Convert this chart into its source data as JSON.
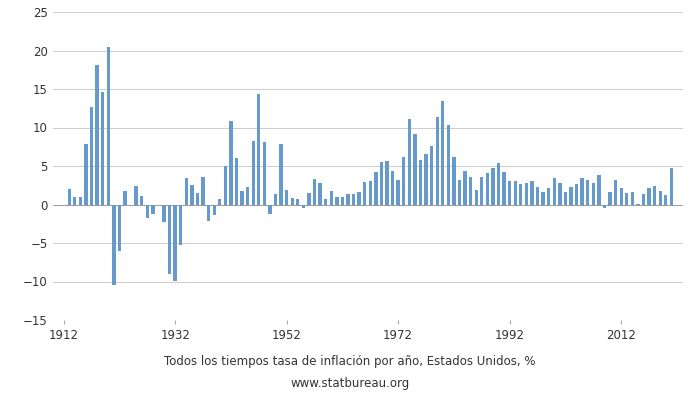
{
  "title": "Todos los tiempos tasa de inflación por año, Estados Unidos, %",
  "subtitle": "www.statbureau.org",
  "bar_color": "#6699cc",
  "ylim": [
    -15,
    25
  ],
  "yticks": [
    -15,
    -10,
    -5,
    0,
    5,
    10,
    15,
    20,
    25
  ],
  "xlim": [
    1910,
    2023
  ],
  "xtick_positions": [
    1912,
    1932,
    1952,
    1972,
    1992,
    2012
  ],
  "data": [
    [
      1913,
      2.0
    ],
    [
      1914,
      1.0
    ],
    [
      1915,
      1.0
    ],
    [
      1916,
      7.9
    ],
    [
      1917,
      12.6
    ],
    [
      1918,
      18.1
    ],
    [
      1919,
      14.6
    ],
    [
      1920,
      20.4
    ],
    [
      1921,
      -10.5
    ],
    [
      1922,
      -6.1
    ],
    [
      1923,
      1.8
    ],
    [
      1924,
      0.0
    ],
    [
      1925,
      2.4
    ],
    [
      1926,
      1.1
    ],
    [
      1927,
      -1.7
    ],
    [
      1928,
      -1.2
    ],
    [
      1929,
      0.0
    ],
    [
      1930,
      -2.3
    ],
    [
      1931,
      -9.0
    ],
    [
      1932,
      -9.9
    ],
    [
      1933,
      -5.2
    ],
    [
      1934,
      3.5
    ],
    [
      1935,
      2.5
    ],
    [
      1936,
      1.5
    ],
    [
      1937,
      3.6
    ],
    [
      1938,
      -2.1
    ],
    [
      1939,
      -1.4
    ],
    [
      1940,
      0.7
    ],
    [
      1941,
      5.0
    ],
    [
      1942,
      10.9
    ],
    [
      1943,
      6.1
    ],
    [
      1944,
      1.7
    ],
    [
      1945,
      2.3
    ],
    [
      1946,
      8.3
    ],
    [
      1947,
      14.4
    ],
    [
      1948,
      8.1
    ],
    [
      1949,
      -1.2
    ],
    [
      1950,
      1.3
    ],
    [
      1951,
      7.9
    ],
    [
      1952,
      1.9
    ],
    [
      1953,
      0.8
    ],
    [
      1954,
      0.7
    ],
    [
      1955,
      -0.4
    ],
    [
      1956,
      1.5
    ],
    [
      1957,
      3.3
    ],
    [
      1958,
      2.8
    ],
    [
      1959,
      0.7
    ],
    [
      1960,
      1.7
    ],
    [
      1961,
      1.0
    ],
    [
      1962,
      1.0
    ],
    [
      1963,
      1.3
    ],
    [
      1964,
      1.3
    ],
    [
      1965,
      1.6
    ],
    [
      1966,
      2.9
    ],
    [
      1967,
      3.1
    ],
    [
      1968,
      4.2
    ],
    [
      1969,
      5.5
    ],
    [
      1970,
      5.7
    ],
    [
      1971,
      4.4
    ],
    [
      1972,
      3.2
    ],
    [
      1973,
      6.2
    ],
    [
      1974,
      11.1
    ],
    [
      1975,
      9.1
    ],
    [
      1976,
      5.8
    ],
    [
      1977,
      6.5
    ],
    [
      1978,
      7.6
    ],
    [
      1979,
      11.3
    ],
    [
      1980,
      13.5
    ],
    [
      1981,
      10.3
    ],
    [
      1982,
      6.2
    ],
    [
      1983,
      3.2
    ],
    [
      1984,
      4.3
    ],
    [
      1985,
      3.6
    ],
    [
      1986,
      1.9
    ],
    [
      1987,
      3.6
    ],
    [
      1988,
      4.1
    ],
    [
      1989,
      4.8
    ],
    [
      1990,
      5.4
    ],
    [
      1991,
      4.2
    ],
    [
      1992,
      3.0
    ],
    [
      1993,
      3.0
    ],
    [
      1994,
      2.6
    ],
    [
      1995,
      2.8
    ],
    [
      1996,
      3.0
    ],
    [
      1997,
      2.3
    ],
    [
      1998,
      1.6
    ],
    [
      1999,
      2.2
    ],
    [
      2000,
      3.4
    ],
    [
      2001,
      2.8
    ],
    [
      2002,
      1.6
    ],
    [
      2003,
      2.3
    ],
    [
      2004,
      2.7
    ],
    [
      2005,
      3.4
    ],
    [
      2006,
      3.2
    ],
    [
      2007,
      2.8
    ],
    [
      2008,
      3.8
    ],
    [
      2009,
      -0.4
    ],
    [
      2010,
      1.6
    ],
    [
      2011,
      3.2
    ],
    [
      2012,
      2.1
    ],
    [
      2013,
      1.5
    ],
    [
      2014,
      1.6
    ],
    [
      2015,
      0.1
    ],
    [
      2016,
      1.3
    ],
    [
      2017,
      2.1
    ],
    [
      2018,
      2.4
    ],
    [
      2019,
      1.8
    ],
    [
      2020,
      1.2
    ],
    [
      2021,
      4.7
    ]
  ]
}
